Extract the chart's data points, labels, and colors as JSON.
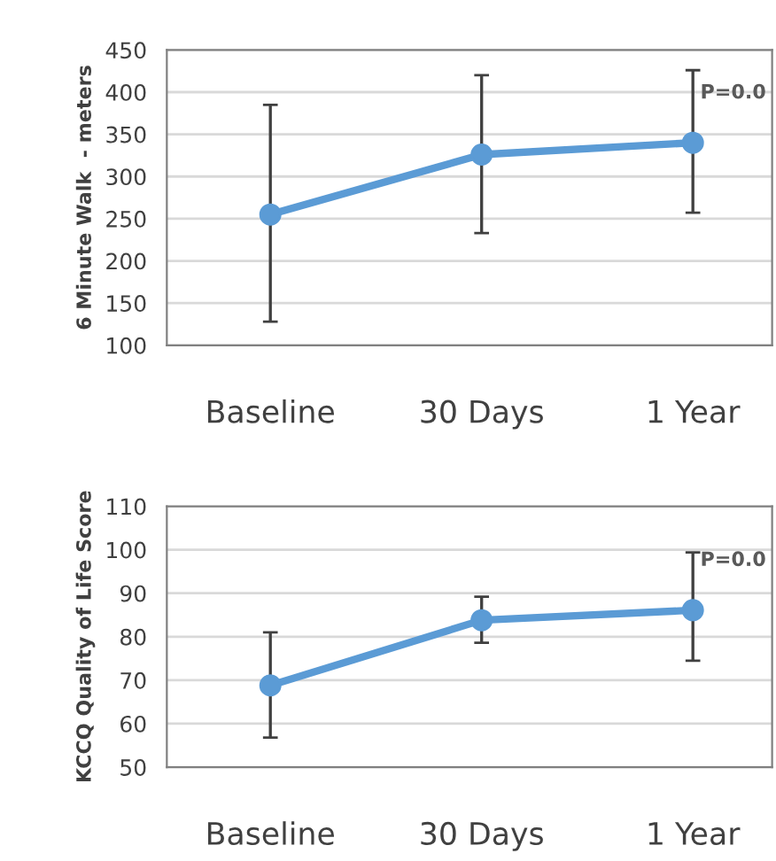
{
  "chart_data": [
    {
      "type": "line",
      "ylabel": "6 Minute Walk  - meters",
      "categories": [
        "Baseline",
        "30 Days",
        "1 Year"
      ],
      "series": [
        {
          "color": "#5b9bd5",
          "values": [
            255,
            326,
            340
          ],
          "errors": [
            [
              128,
              385
            ],
            [
              233,
              420
            ],
            [
              257,
              426
            ]
          ]
        }
      ],
      "ylim": [
        100,
        450
      ],
      "yticks": [
        100,
        150,
        200,
        250,
        300,
        350,
        400,
        450
      ],
      "grid": "y",
      "marker": "circle",
      "line_style": "solid",
      "annotations": [
        {
          "text": "P=0.0",
          "x": "1 Year",
          "y": 340
        }
      ]
    },
    {
      "type": "line",
      "ylabel": "KCCQ Quality of Life Score",
      "categories": [
        "Baseline",
        "30 Days",
        "1 Year"
      ],
      "series": [
        {
          "color": "#5b9bd5",
          "values": [
            68.8,
            83.8,
            86.1
          ],
          "errors": [
            [
              56.8,
              81
            ],
            [
              78.6,
              89.2
            ],
            [
              74.5,
              99.4
            ]
          ]
        }
      ],
      "ylim": [
        50,
        110
      ],
      "yticks": [
        50,
        60,
        70,
        80,
        90,
        100,
        110
      ],
      "grid": "y",
      "marker": "circle",
      "line_style": "solid",
      "annotations": [
        {
          "text": "P=0.0",
          "x": "1 Year",
          "y": 86.1
        }
      ]
    }
  ]
}
